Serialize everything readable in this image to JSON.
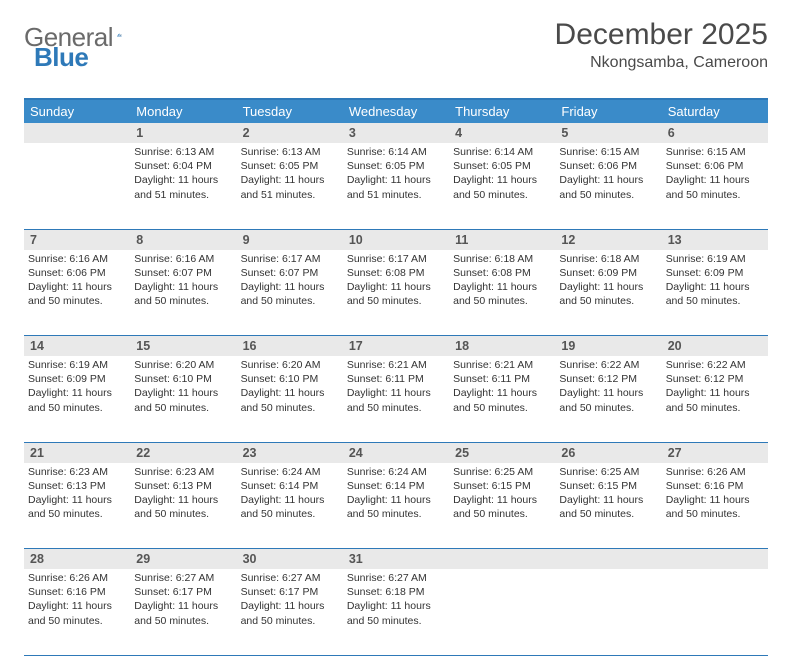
{
  "brand": {
    "name_gray": "General",
    "name_blue": "Blue"
  },
  "header": {
    "title": "December 2025",
    "location": "Nkongsamba, Cameroon"
  },
  "colors": {
    "header_bg": "#3a8bc9",
    "rule": "#2e79b8",
    "daynum_bg": "#e9e9e9",
    "text": "#333333",
    "logo_gray": "#6a6a6a",
    "logo_blue": "#2e79b8"
  },
  "days_of_week": [
    "Sunday",
    "Monday",
    "Tuesday",
    "Wednesday",
    "Thursday",
    "Friday",
    "Saturday"
  ],
  "weeks": [
    [
      null,
      {
        "n": "1",
        "sr": "6:13 AM",
        "ss": "6:04 PM",
        "dl": "11 hours and 51 minutes."
      },
      {
        "n": "2",
        "sr": "6:13 AM",
        "ss": "6:05 PM",
        "dl": "11 hours and 51 minutes."
      },
      {
        "n": "3",
        "sr": "6:14 AM",
        "ss": "6:05 PM",
        "dl": "11 hours and 51 minutes."
      },
      {
        "n": "4",
        "sr": "6:14 AM",
        "ss": "6:05 PM",
        "dl": "11 hours and 50 minutes."
      },
      {
        "n": "5",
        "sr": "6:15 AM",
        "ss": "6:06 PM",
        "dl": "11 hours and 50 minutes."
      },
      {
        "n": "6",
        "sr": "6:15 AM",
        "ss": "6:06 PM",
        "dl": "11 hours and 50 minutes."
      }
    ],
    [
      {
        "n": "7",
        "sr": "6:16 AM",
        "ss": "6:06 PM",
        "dl": "11 hours and 50 minutes."
      },
      {
        "n": "8",
        "sr": "6:16 AM",
        "ss": "6:07 PM",
        "dl": "11 hours and 50 minutes."
      },
      {
        "n": "9",
        "sr": "6:17 AM",
        "ss": "6:07 PM",
        "dl": "11 hours and 50 minutes."
      },
      {
        "n": "10",
        "sr": "6:17 AM",
        "ss": "6:08 PM",
        "dl": "11 hours and 50 minutes."
      },
      {
        "n": "11",
        "sr": "6:18 AM",
        "ss": "6:08 PM",
        "dl": "11 hours and 50 minutes."
      },
      {
        "n": "12",
        "sr": "6:18 AM",
        "ss": "6:09 PM",
        "dl": "11 hours and 50 minutes."
      },
      {
        "n": "13",
        "sr": "6:19 AM",
        "ss": "6:09 PM",
        "dl": "11 hours and 50 minutes."
      }
    ],
    [
      {
        "n": "14",
        "sr": "6:19 AM",
        "ss": "6:09 PM",
        "dl": "11 hours and 50 minutes."
      },
      {
        "n": "15",
        "sr": "6:20 AM",
        "ss": "6:10 PM",
        "dl": "11 hours and 50 minutes."
      },
      {
        "n": "16",
        "sr": "6:20 AM",
        "ss": "6:10 PM",
        "dl": "11 hours and 50 minutes."
      },
      {
        "n": "17",
        "sr": "6:21 AM",
        "ss": "6:11 PM",
        "dl": "11 hours and 50 minutes."
      },
      {
        "n": "18",
        "sr": "6:21 AM",
        "ss": "6:11 PM",
        "dl": "11 hours and 50 minutes."
      },
      {
        "n": "19",
        "sr": "6:22 AM",
        "ss": "6:12 PM",
        "dl": "11 hours and 50 minutes."
      },
      {
        "n": "20",
        "sr": "6:22 AM",
        "ss": "6:12 PM",
        "dl": "11 hours and 50 minutes."
      }
    ],
    [
      {
        "n": "21",
        "sr": "6:23 AM",
        "ss": "6:13 PM",
        "dl": "11 hours and 50 minutes."
      },
      {
        "n": "22",
        "sr": "6:23 AM",
        "ss": "6:13 PM",
        "dl": "11 hours and 50 minutes."
      },
      {
        "n": "23",
        "sr": "6:24 AM",
        "ss": "6:14 PM",
        "dl": "11 hours and 50 minutes."
      },
      {
        "n": "24",
        "sr": "6:24 AM",
        "ss": "6:14 PM",
        "dl": "11 hours and 50 minutes."
      },
      {
        "n": "25",
        "sr": "6:25 AM",
        "ss": "6:15 PM",
        "dl": "11 hours and 50 minutes."
      },
      {
        "n": "26",
        "sr": "6:25 AM",
        "ss": "6:15 PM",
        "dl": "11 hours and 50 minutes."
      },
      {
        "n": "27",
        "sr": "6:26 AM",
        "ss": "6:16 PM",
        "dl": "11 hours and 50 minutes."
      }
    ],
    [
      {
        "n": "28",
        "sr": "6:26 AM",
        "ss": "6:16 PM",
        "dl": "11 hours and 50 minutes."
      },
      {
        "n": "29",
        "sr": "6:27 AM",
        "ss": "6:17 PM",
        "dl": "11 hours and 50 minutes."
      },
      {
        "n": "30",
        "sr": "6:27 AM",
        "ss": "6:17 PM",
        "dl": "11 hours and 50 minutes."
      },
      {
        "n": "31",
        "sr": "6:27 AM",
        "ss": "6:18 PM",
        "dl": "11 hours and 50 minutes."
      },
      null,
      null,
      null
    ]
  ],
  "labels": {
    "sunrise": "Sunrise:",
    "sunset": "Sunset:",
    "daylight": "Daylight:"
  }
}
